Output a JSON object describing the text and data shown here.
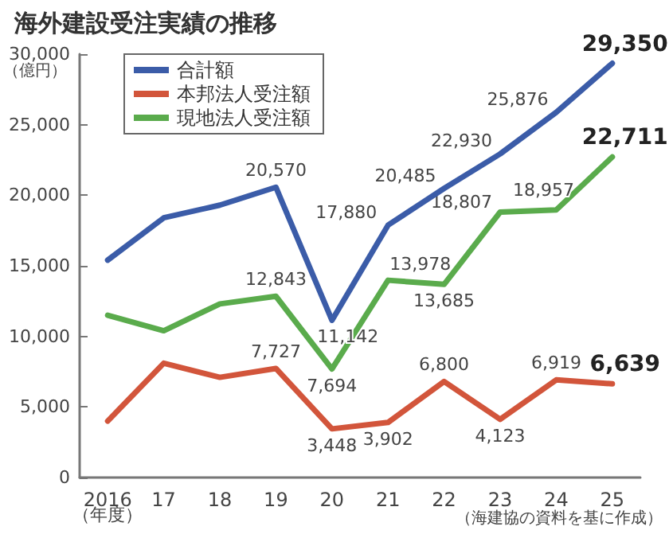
{
  "chart_data": {
    "type": "line",
    "title": "海外建設受注実績の推移",
    "ylabel": "（億円）",
    "xlabel": "（年度）",
    "annotations": [
      "（海建協の資料を基に作成）"
    ],
    "categories": [
      "2016",
      "17",
      "18",
      "19",
      "20",
      "21",
      "22",
      "23",
      "24",
      "25"
    ],
    "ylim": [
      0,
      30000
    ],
    "yticks": [
      {
        "value": 0,
        "label": "0"
      },
      {
        "value": 5000,
        "label": "5,000"
      },
      {
        "value": 10000,
        "label": "10,000"
      },
      {
        "value": 15000,
        "label": "15,000"
      },
      {
        "value": 20000,
        "label": "20,000"
      },
      {
        "value": 25000,
        "label": "25,000"
      },
      {
        "value": 30000,
        "label": "30,000"
      }
    ],
    "grid": false,
    "legend": "top left",
    "marker": "none",
    "line_style": "solid",
    "series": [
      {
        "name": "合計額",
        "color": "#3b5ca8",
        "values": [
          15400,
          18400,
          19300,
          20570,
          11142,
          17880,
          20485,
          22930,
          25876,
          29350
        ],
        "value_labels": [
          null,
          null,
          null,
          "20,570",
          "11,142",
          "17,880",
          "20,485",
          "22,930",
          "25,876",
          "29,350"
        ]
      },
      {
        "name": "本邦法人受注額",
        "color": "#d2553b",
        "values": [
          4000,
          8100,
          7100,
          7727,
          3448,
          3902,
          6800,
          4123,
          6919,
          6639
        ],
        "value_labels": [
          null,
          null,
          null,
          "7,727",
          "3,448",
          "3,902",
          "6,800",
          "4,123",
          "6,919",
          "6,639"
        ]
      },
      {
        "name": "現地法人受注額",
        "color": "#5aab4c",
        "values": [
          11500,
          10400,
          12300,
          12843,
          7694,
          13978,
          13685,
          18807,
          18957,
          22711
        ],
        "value_labels": [
          null,
          null,
          null,
          "12,843",
          "7,694",
          "13,978",
          "13,685",
          "18,807",
          "18,957",
          "22,711"
        ]
      }
    ]
  }
}
